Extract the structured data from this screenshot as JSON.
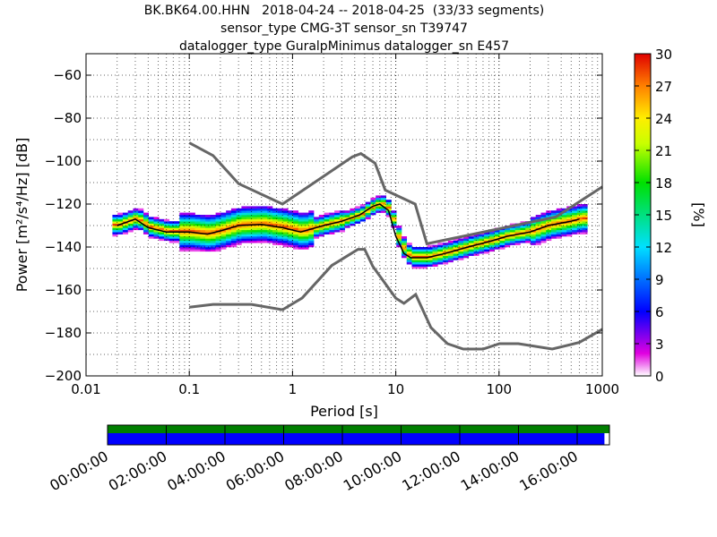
{
  "title": {
    "line1": "BK.BK64.00.HHN   2018-04-24 -- 2018-04-25  (33/33 segments)",
    "line2": "sensor_type CMG-3T sensor_sn T39747",
    "line3": "datalogger_type GuralpMinimus datalogger_sn E457"
  },
  "chart_data": {
    "type": "heatmap",
    "xlabel": "Period [s]",
    "ylabel": "Power [m²/s⁴/Hz] [dB]",
    "x_scale": "log",
    "xlim": [
      0.01,
      1000
    ],
    "ylim": [
      -200,
      -50
    ],
    "x_ticks": [
      "0.01",
      "0.1",
      "1",
      "10",
      "100",
      "1000"
    ],
    "y_ticks": [
      "−200",
      "−180",
      "−160",
      "−140",
      "−120",
      "−100",
      "−80",
      "−60"
    ],
    "grid": "dotted",
    "colorbar": {
      "label": "[%]",
      "range": [
        0,
        30
      ],
      "ticks": [
        "0",
        "3",
        "6",
        "9",
        "12",
        "15",
        "18",
        "21",
        "24",
        "27",
        "30"
      ],
      "colormap": "pqlx"
    },
    "noise_model_high": {
      "x": [
        0.1,
        0.17,
        0.3,
        0.8,
        3.8,
        4.6,
        6.3,
        7.9,
        15.4,
        20,
        354.8,
        1000
      ],
      "y": [
        -91.5,
        -97.4,
        -110.5,
        -120,
        -98,
        -96.5,
        -101,
        -113.5,
        -120,
        -138.5,
        -126,
        -112
      ]
    },
    "noise_model_low": {
      "x": [
        0.1,
        0.17,
        0.4,
        0.8,
        1.24,
        2.4,
        4.3,
        5,
        6,
        10,
        12,
        15.6,
        21.9,
        31.6,
        45,
        70,
        101,
        154,
        328,
        600,
        1000
      ],
      "y": [
        -168,
        -166.7,
        -166.7,
        -169.2,
        -163.7,
        -148.6,
        -141.1,
        -141.1,
        -149,
        -163.8,
        -166.2,
        -162.1,
        -177.5,
        -185,
        -187.5,
        -187.5,
        -185,
        -185,
        -187.5,
        -184.4,
        -178.3
      ]
    },
    "mode_curve": {
      "x": [
        0.02,
        0.03,
        0.04,
        0.06,
        0.1,
        0.15,
        0.2,
        0.3,
        0.5,
        0.8,
        1.2,
        2,
        3,
        4.5,
        6,
        7,
        8.5,
        10,
        12,
        14,
        20,
        30,
        50,
        80,
        120,
        200,
        300,
        500,
        600
      ],
      "y": [
        -130,
        -127,
        -131,
        -133,
        -133,
        -134,
        -132.5,
        -130,
        -129.5,
        -131,
        -133,
        -130,
        -128,
        -125,
        -121,
        -120,
        -123,
        -135,
        -143,
        -145,
        -145,
        -143,
        -140,
        -137.5,
        -135,
        -133,
        -130,
        -128,
        -127
      ]
    },
    "gaps_bar": {
      "x_ticks": [
        "00:00:00",
        "02:00:00",
        "04:00:00",
        "06:00:00",
        "08:00:00",
        "10:00:00",
        "12:00:00",
        "14:00:00",
        "16:00:00"
      ],
      "segments_fraction": 0.99,
      "colors": {
        "available": "#007f00",
        "data": "#0000ff"
      }
    }
  }
}
